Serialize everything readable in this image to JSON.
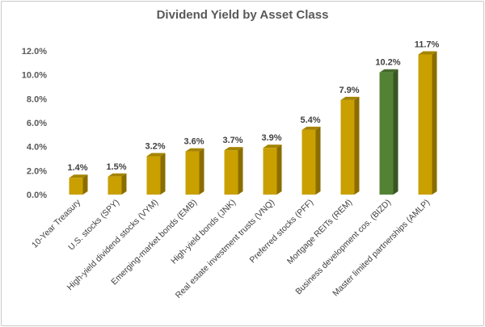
{
  "chart_data": {
    "type": "bar",
    "title": "Dividend Yield by Asset Class",
    "xlabel": "",
    "ylabel": "",
    "ylim": [
      0,
      12
    ],
    "yticks": [
      "0.0%",
      "2.0%",
      "4.0%",
      "6.0%",
      "8.0%",
      "10.0%",
      "12.0%"
    ],
    "grid": false,
    "categories": [
      "10-Year Treasury",
      "U.S. stocks (SPY)",
      "High-yield dividend stocks (VYM)",
      "Emerging-market bonds (EMB)",
      "High-yield bonds (JNK)",
      "Real estate investment trusts (VNQ)",
      "Preferred stocks (PFF)",
      "Mortgage REITs (REM)",
      "Business development cos. (BIZD)",
      "Master limited partnerships (AMLP)"
    ],
    "values": [
      1.4,
      1.5,
      3.2,
      3.6,
      3.7,
      3.9,
      5.4,
      7.9,
      10.2,
      11.7
    ],
    "data_labels": [
      "1.4%",
      "1.5%",
      "3.2%",
      "3.6%",
      "3.7%",
      "3.9%",
      "5.4%",
      "7.9%",
      "10.2%",
      "11.7%"
    ],
    "colors": {
      "default": "#C9A000",
      "default_side": "#8A6D00",
      "default_top": "#A58400",
      "highlight": "#548235",
      "highlight_side": "#375623",
      "highlight_top": "#44692B"
    },
    "highlight_index": 8
  }
}
